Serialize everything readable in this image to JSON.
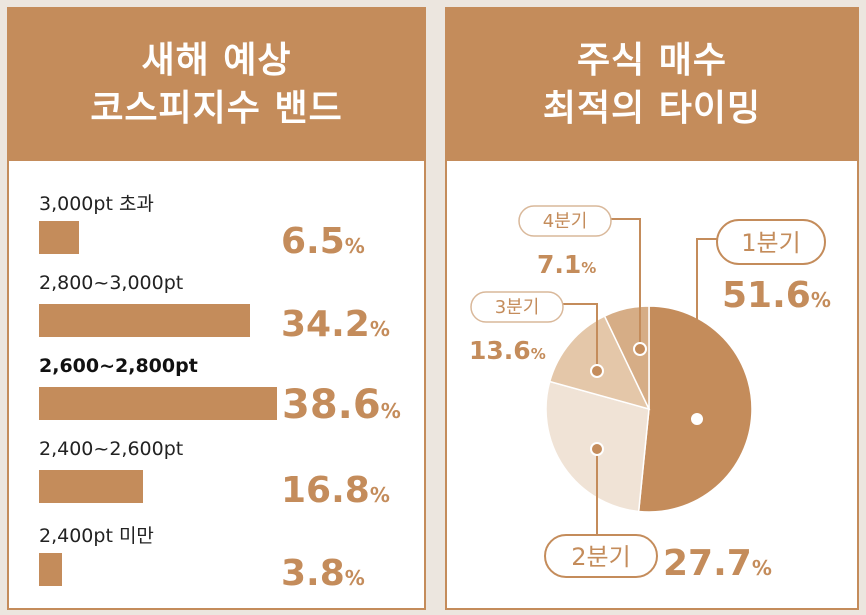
{
  "panel1": {
    "title_line1": "새해 예상",
    "title_line2": "코스피지수 밴드"
  },
  "panel2": {
    "title_line1": "주식 매수",
    "title_line2": "최적의 타이밍"
  },
  "unit": "%",
  "colors": {
    "accent": "#c48c5b",
    "slice1": "#c48c5b",
    "slice2": "#f0e3d6",
    "slice3": "#e4c7a9",
    "slice4": "#d6ad86"
  },
  "chart_data": [
    {
      "type": "bar",
      "orientation": "horizontal",
      "categories": [
        "3,000pt 초과",
        "2,800~3,000pt",
        "2,600~2,800pt",
        "2,400~2,600pt",
        "2,400pt 미만"
      ],
      "values": [
        6.5,
        34.2,
        38.6,
        16.8,
        3.8
      ],
      "value_labels": [
        "6.5",
        "34.2",
        "38.6",
        "16.8",
        "3.8"
      ],
      "highlight_index": 2
    },
    {
      "type": "pie",
      "labels": [
        "1분기",
        "2분기",
        "3분기",
        "4분기"
      ],
      "values": [
        51.6,
        27.7,
        13.6,
        7.1
      ],
      "value_labels": [
        "51.6",
        "27.7",
        "13.6",
        "7.1"
      ]
    }
  ]
}
